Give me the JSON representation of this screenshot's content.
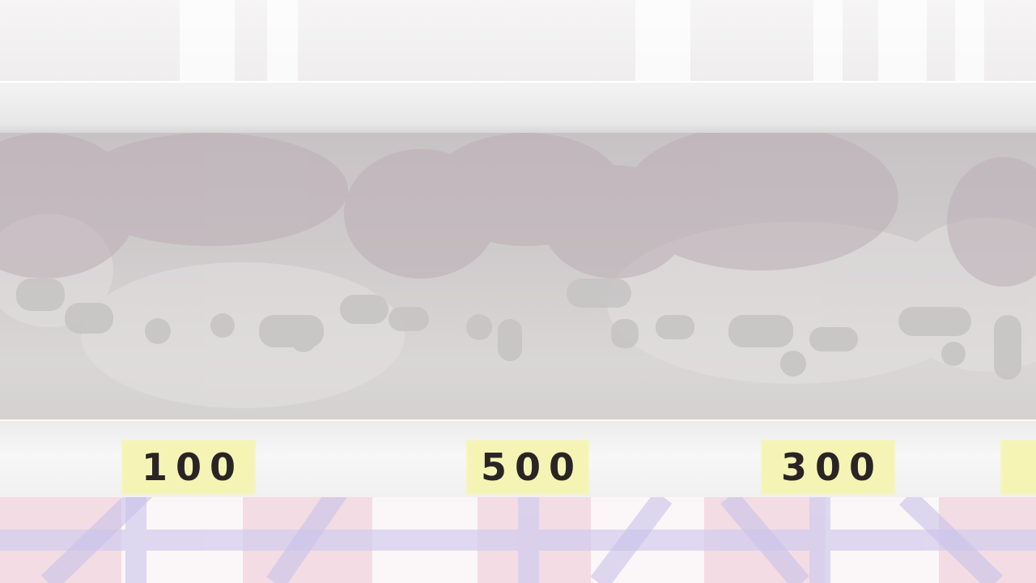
{
  "scene": {
    "name": "shop-shelf",
    "colors": {
      "price_tag": "#f6f4b5",
      "price_text": "#2a2424",
      "shelf_shadow": "#c7c2c4",
      "floor_pink": "#f3d9e0",
      "floor_blue": "#cfc8ea"
    }
  },
  "price_tags": [
    {
      "label": "100"
    },
    {
      "label": "500"
    },
    {
      "label": "300"
    },
    {
      "label": ""
    }
  ]
}
